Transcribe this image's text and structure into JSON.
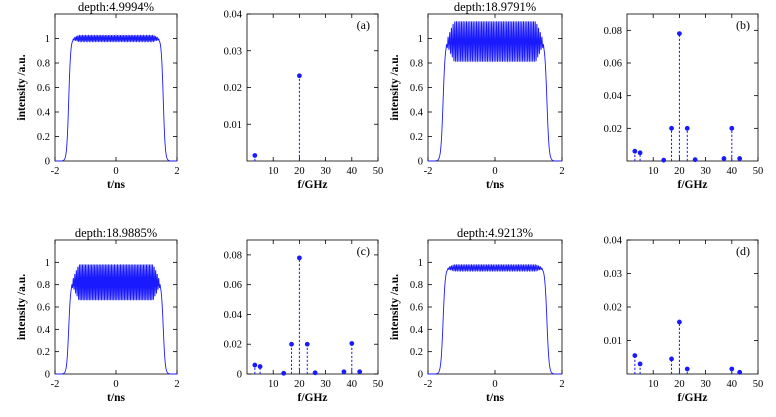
{
  "chart_data": [
    {
      "id": "p1",
      "type": "line",
      "title": "depth:4.9994%",
      "xlabel": "t/ns",
      "ylabel": "intensity /a.u.",
      "xlim": [
        -2,
        2
      ],
      "ylim": [
        0,
        1.2
      ],
      "xticks": [
        -2,
        0,
        2
      ],
      "yticks": [
        0,
        0.2,
        0.4,
        0.6,
        0.8,
        1
      ],
      "pulse": {
        "plateau": [
          -1.55,
          1.55
        ],
        "rise_width": 0.13,
        "mean": 1.0,
        "ripple": 0.025,
        "ripple_freq_GHz": 20
      },
      "color": "#1a1aff"
    },
    {
      "id": "p2",
      "type": "stem",
      "label": "(a)",
      "xlabel": "f/GHz",
      "xlim": [
        0,
        50
      ],
      "ylim": [
        0,
        0.04
      ],
      "xticks": [
        10,
        20,
        30,
        40,
        50
      ],
      "yticks": [
        0.01,
        0.02,
        0.03,
        0.04
      ],
      "x": [
        3,
        20
      ],
      "y": [
        0.0015,
        0.0232
      ],
      "color": "#1a1aff"
    },
    {
      "id": "p3",
      "type": "line",
      "title": "depth:18.9791%",
      "xlabel": "t/ns",
      "ylabel": "intensity /a.u.",
      "xlim": [
        -2,
        2
      ],
      "ylim": [
        0,
        1.2
      ],
      "xticks": [
        -2,
        0,
        2
      ],
      "yticks": [
        0,
        0.2,
        0.4,
        0.6,
        0.8,
        1
      ],
      "pulse": {
        "plateau": [
          -1.55,
          1.55
        ],
        "rise_width": 0.13,
        "mean": 0.975,
        "ripple": 0.165,
        "ripple_freq_GHz": 20
      },
      "color": "#1a1aff"
    },
    {
      "id": "p4",
      "type": "stem",
      "label": "(b)",
      "xlabel": "f/GHz",
      "xlim": [
        0,
        50
      ],
      "ylim": [
        0,
        0.09
      ],
      "xticks": [
        10,
        20,
        30,
        40,
        50
      ],
      "yticks": [
        0.02,
        0.04,
        0.06,
        0.08
      ],
      "x": [
        3,
        5,
        14,
        17,
        20,
        23,
        26,
        37,
        40,
        43
      ],
      "y": [
        0.006,
        0.005,
        0.0005,
        0.02,
        0.078,
        0.02,
        0.0008,
        0.0015,
        0.02,
        0.0015
      ],
      "color": "#1a1aff"
    },
    {
      "id": "p5",
      "type": "line",
      "title": "depth:18.9885%",
      "xlabel": "t/ns",
      "ylabel": "intensity /a.u.",
      "xlim": [
        -2,
        2
      ],
      "ylim": [
        0,
        1.2
      ],
      "xticks": [
        -2,
        0,
        2
      ],
      "yticks": [
        0,
        0.2,
        0.4,
        0.6,
        0.8,
        1
      ],
      "pulse": {
        "plateau": [
          -1.55,
          1.55
        ],
        "rise_width": 0.13,
        "mean": 0.82,
        "ripple": 0.16,
        "ripple_freq_GHz": 20
      },
      "color": "#1a1aff"
    },
    {
      "id": "p6",
      "type": "stem",
      "label": "(c)",
      "xlabel": "f/GHz",
      "xlim": [
        0,
        50
      ],
      "ylim": [
        0,
        0.09
      ],
      "xticks": [
        10,
        20,
        30,
        40,
        50
      ],
      "yticks": [
        0,
        0.02,
        0.04,
        0.06,
        0.08
      ],
      "x": [
        3,
        5,
        14,
        17,
        20,
        23,
        26,
        37,
        40,
        43
      ],
      "y": [
        0.006,
        0.005,
        0.0005,
        0.02,
        0.078,
        0.02,
        0.0008,
        0.0015,
        0.0205,
        0.0015
      ],
      "color": "#1a1aff"
    },
    {
      "id": "p7",
      "type": "line",
      "title": "depth:4.9213%",
      "xlabel": "t/ns",
      "ylabel": "intensity /a.u.",
      "xlim": [
        -2,
        2
      ],
      "ylim": [
        0,
        1.2
      ],
      "xticks": [
        -2,
        0,
        2
      ],
      "yticks": [
        0,
        0.2,
        0.4,
        0.6,
        0.8,
        1
      ],
      "pulse": {
        "plateau": [
          -1.55,
          1.55
        ],
        "rise_width": 0.13,
        "mean": 0.95,
        "ripple": 0.028,
        "ripple_freq_GHz": 20
      },
      "color": "#1a1aff"
    },
    {
      "id": "p8",
      "type": "stem",
      "label": "(d)",
      "xlabel": "f/GHz",
      "xlim": [
        0,
        50
      ],
      "ylim": [
        0,
        0.04
      ],
      "xticks": [
        10,
        20,
        30,
        40,
        50
      ],
      "yticks": [
        0.01,
        0.02,
        0.03,
        0.04
      ],
      "x": [
        3,
        5,
        17,
        20,
        23,
        40,
        43
      ],
      "y": [
        0.0055,
        0.003,
        0.0045,
        0.0155,
        0.0015,
        0.0015,
        0.0005
      ],
      "color": "#1a1aff"
    }
  ]
}
